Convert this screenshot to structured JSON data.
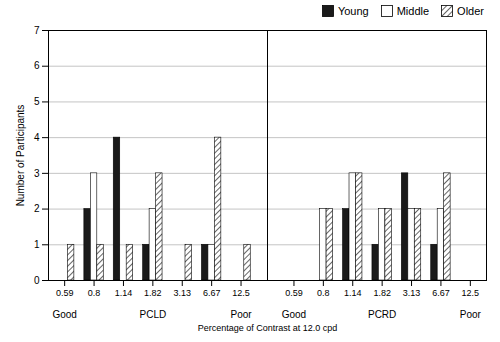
{
  "chart_data": {
    "type": "bar",
    "xlabel": "Percentage of Contrast at 12.0 cpd",
    "ylabel": "Number of Participants",
    "categories": [
      "0.59",
      "0.8",
      "1.14",
      "1.82",
      "3.13",
      "6.67",
      "12.5",
      "0.59",
      "0.8",
      "1.14",
      "1.82",
      "3.13",
      "6.67",
      "12.5"
    ],
    "series": [
      {
        "name": "Young",
        "color": "#1a1a1a",
        "values": [
          0,
          2,
          4,
          1,
          0,
          1,
          0,
          0,
          0,
          2,
          1,
          3,
          1,
          0
        ]
      },
      {
        "name": "Middle",
        "color": "#ffffff",
        "values": [
          0,
          3,
          0,
          2,
          0,
          1,
          0,
          0,
          2,
          3,
          2,
          2,
          2,
          0
        ]
      },
      {
        "name": "Older",
        "color": "#ffffff",
        "values": [
          1,
          1,
          1,
          3,
          1,
          4,
          1,
          0,
          2,
          3,
          2,
          2,
          3,
          0
        ]
      }
    ],
    "ylim": [
      0,
      7
    ],
    "yticks": [
      0,
      1,
      2,
      3,
      4,
      5,
      6,
      7
    ],
    "grid": true,
    "legend": "upper right",
    "annotations": [
      {
        "text": "Good",
        "category_indices": [
          0
        ]
      },
      {
        "text": "PCLD",
        "category_indices": [
          1,
          2,
          3,
          4,
          5
        ]
      },
      {
        "text": "Poor",
        "category_indices": [
          6
        ]
      },
      {
        "text": "Good",
        "category_indices": [
          7
        ]
      },
      {
        "text": "PCRD",
        "category_indices": [
          8,
          9,
          10,
          11,
          12
        ]
      },
      {
        "text": "Poor",
        "category_indices": [
          13
        ]
      }
    ]
  }
}
